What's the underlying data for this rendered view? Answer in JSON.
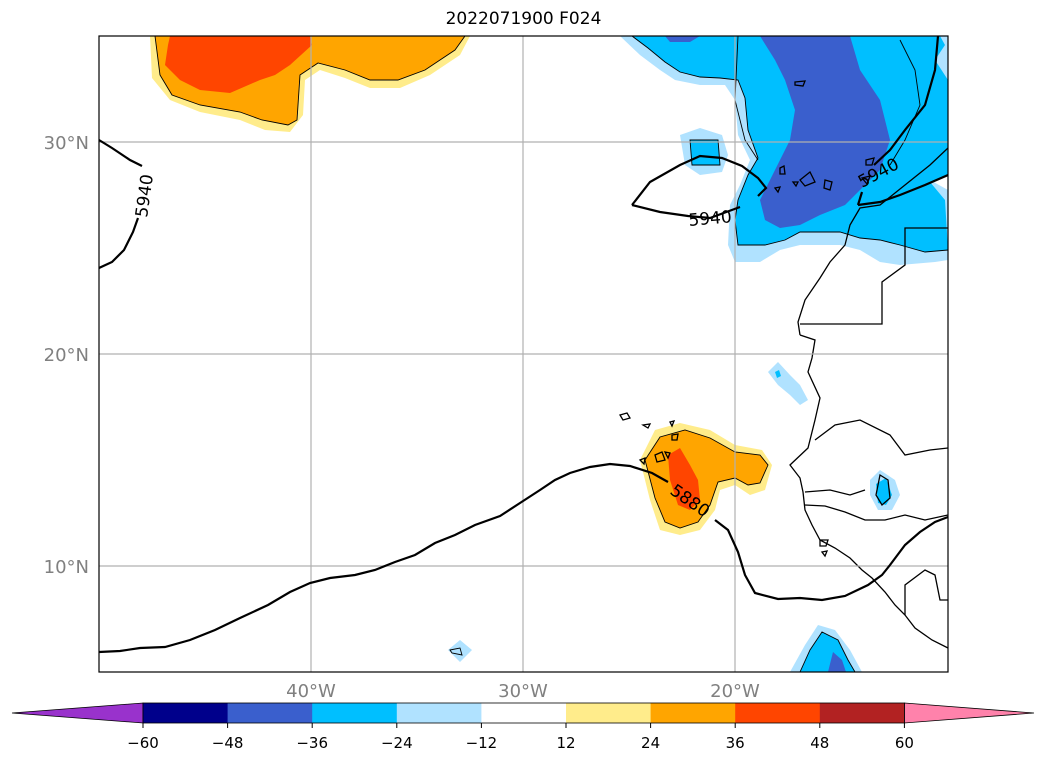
{
  "title": "2022071900 F024",
  "map": {
    "type": "filled-contour map with height contours",
    "lon_labels": [
      "40°W",
      "30°W",
      "20°W"
    ],
    "lat_labels": [
      "30°N",
      "20°N",
      "10°N"
    ],
    "contour_labels": [
      "5940",
      "5940",
      "5940",
      "5880"
    ],
    "grid": true
  },
  "colorbar": {
    "ticks": [
      "−60",
      "−48",
      "−36",
      "−24",
      "−12",
      "12",
      "24",
      "36",
      "48",
      "60"
    ],
    "colors": [
      "#9932CC",
      "#00008B",
      "#3A5FCD",
      "#00BFFF",
      "#B0E2FF",
      "#FFFFFF",
      "#FFEC8B",
      "#FFA500",
      "#FF4500",
      "#B22222",
      "#FF82AB"
    ],
    "extend": "both"
  }
}
